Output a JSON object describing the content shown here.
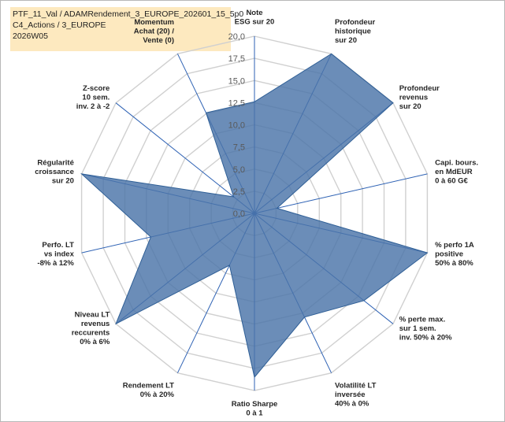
{
  "header": {
    "line1": "PTF_11_Val / ADAMRendement_3_EUROPE_202601_15_5p0",
    "line2": "C4_Actions / 3_EUROPE",
    "line3": "2026W05"
  },
  "colors": {
    "fill": "#4a74a8",
    "stroke": "#2f5f96",
    "grid": "#d0d0d0",
    "spoke": "#2e62b4",
    "title_bg": "#fde9bf"
  },
  "chart_data": {
    "type": "radar",
    "range": [
      0,
      20
    ],
    "ticks": [
      "0,0",
      "2,5",
      "5,0",
      "7,5",
      "10,0",
      "12,5",
      "15,0",
      "17,5",
      "20,0"
    ],
    "axes": [
      {
        "label": [
          "Note",
          "ESG sur 20"
        ],
        "value": 12.6
      },
      {
        "label": [
          "Profondeur",
          "historique",
          "sur 20"
        ],
        "value": 20.0
      },
      {
        "label": [
          "Profondeur",
          "revenus",
          "sur 20"
        ],
        "value": 20.0
      },
      {
        "label": [
          "Capi. bours.",
          "en MdEUR",
          "0 à 60 G€"
        ],
        "value": 2.6
      },
      {
        "label": [
          "% perfo 1A",
          "positive",
          "50% à 80%"
        ],
        "value": 20.0
      },
      {
        "label": [
          "% perte max.",
          "sur 1 sem.",
          "inv. 50% à 20%"
        ],
        "value": 15.8
      },
      {
        "label": [
          "Volatilité LT",
          "inversée",
          "40% à 0%"
        ],
        "value": 13.0
      },
      {
        "label": [
          "Ratio Sharpe",
          "0 à 1"
        ],
        "value": 18.5
      },
      {
        "label": [
          "Rendement LT",
          "0% à 20%"
        ],
        "value": 6.5
      },
      {
        "label": [
          "Niveau LT",
          "revenus",
          "reccurents",
          "0% à 6%"
        ],
        "value": 20.0
      },
      {
        "label": [
          "Perfo. LT",
          "vs index",
          "-8% à 12%"
        ],
        "value": 12.0
      },
      {
        "label": [
          "Régularité",
          "croissance",
          "sur 20"
        ],
        "value": 20.0
      },
      {
        "label": [
          "Z-score",
          "10 sem.",
          "inv. 2 à -2"
        ],
        "value": 3.0
      },
      {
        "label": [
          "Momentum",
          "Achat (20) /",
          "Vente (0)"
        ],
        "value": 12.6
      }
    ]
  }
}
